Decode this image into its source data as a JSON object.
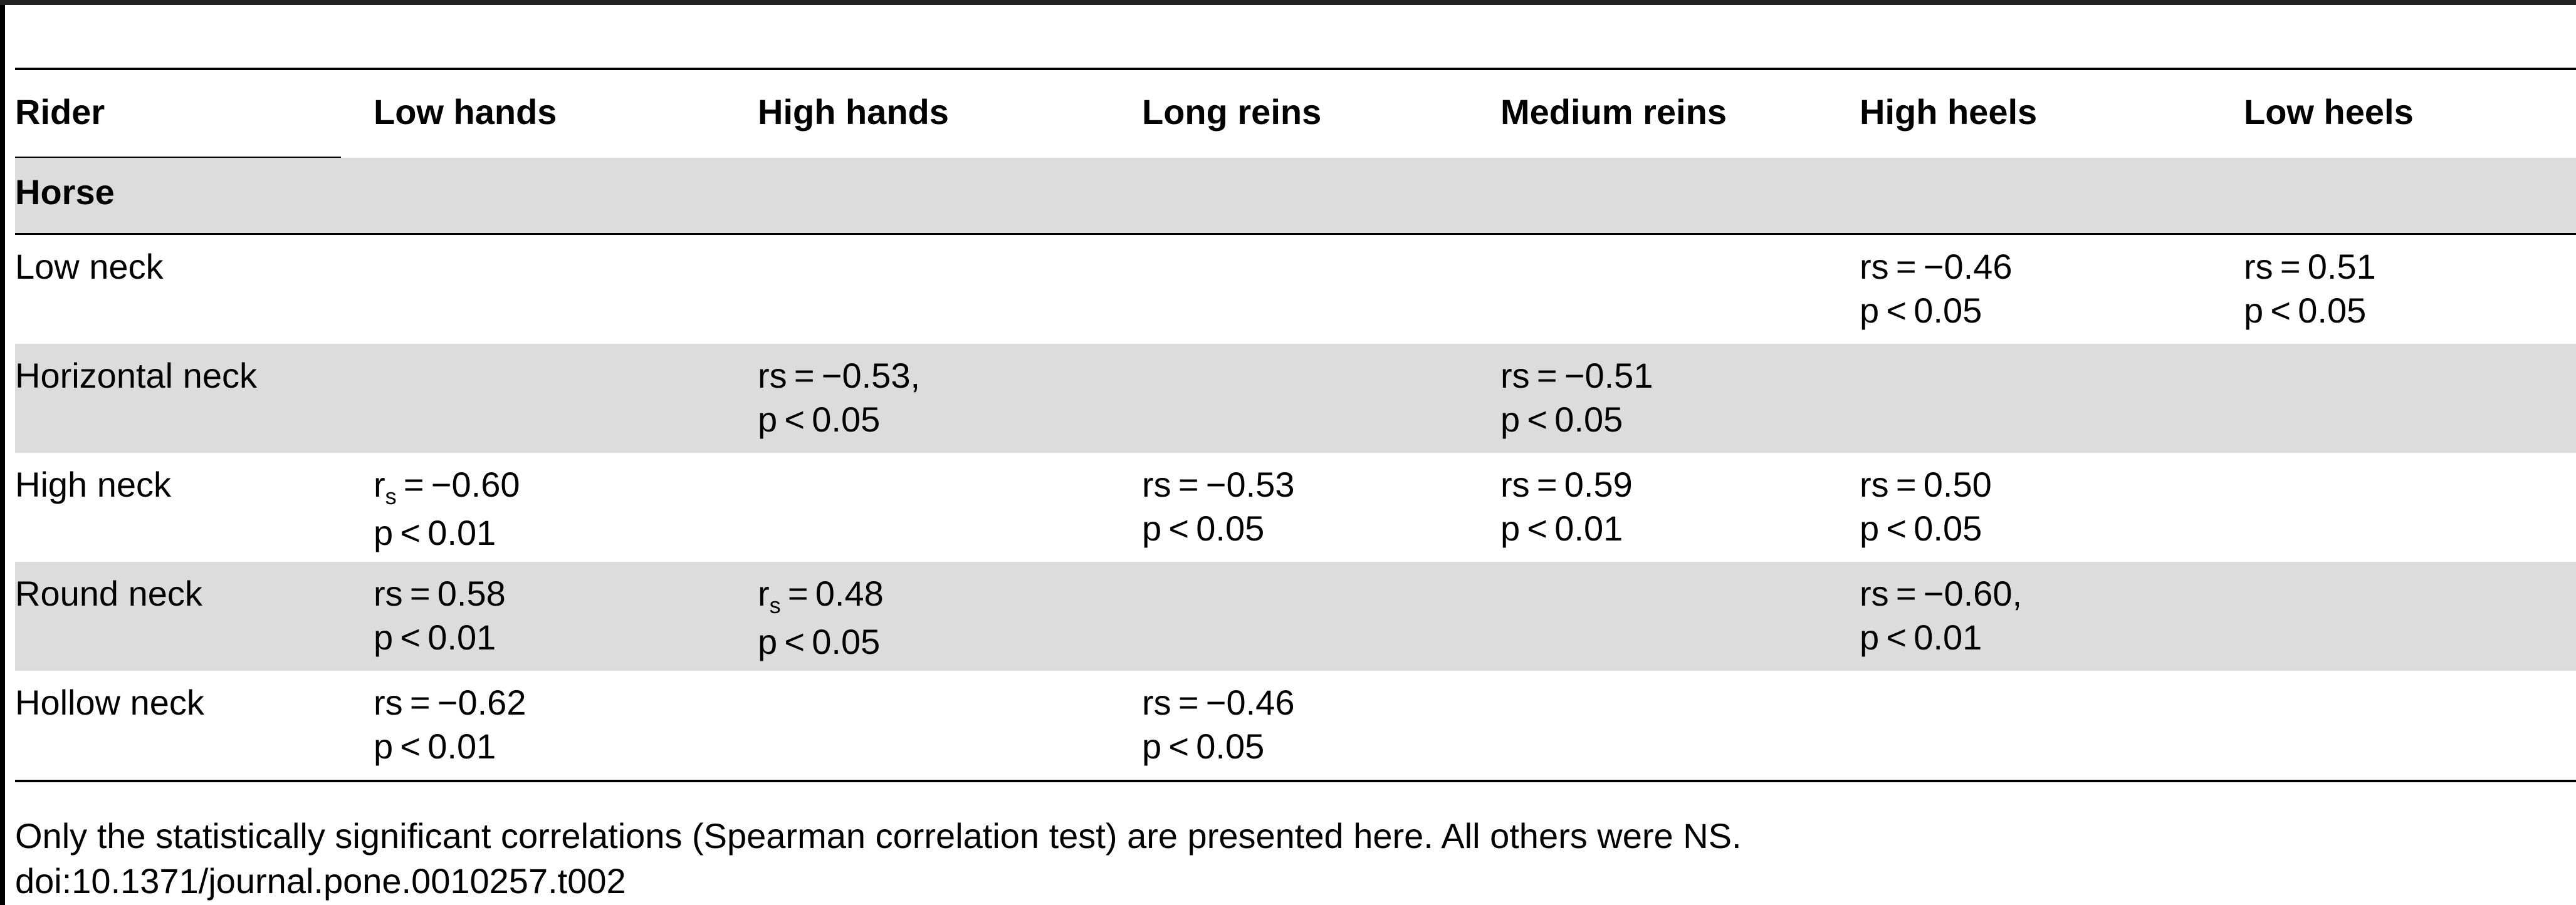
{
  "table": {
    "headers": [
      "Rider",
      "Low hands",
      "High hands",
      "Long reins",
      "Medium reins",
      "High heels",
      "Low heels"
    ],
    "group_label": "Horse",
    "rows": [
      {
        "label": "Low neck",
        "cells": [
          {
            "col": 5,
            "rs": "rs = −0.46",
            "p": "p < 0.05"
          },
          {
            "col": 6,
            "rs": "rs = 0.51",
            "p": "p < 0.05"
          }
        ]
      },
      {
        "label": "Horizontal neck",
        "cells": [
          {
            "col": 2,
            "rs": "rs = −0.53,",
            "p": "p < 0.05"
          },
          {
            "col": 4,
            "rs": "rs = −0.51",
            "p": "p < 0.05"
          }
        ]
      },
      {
        "label": "High neck",
        "cells": [
          {
            "col": 1,
            "r": "r",
            "sub": "s",
            "rest": " = −0.60",
            "p": "p < 0.01"
          },
          {
            "col": 3,
            "rs": "rs = −0.53",
            "p": "p < 0.05"
          },
          {
            "col": 4,
            "rs": "rs = 0.59",
            "p": "p < 0.01"
          },
          {
            "col": 5,
            "rs": "rs = 0.50",
            "p": "p < 0.05"
          }
        ]
      },
      {
        "label": "Round neck",
        "cells": [
          {
            "col": 1,
            "rs": "rs = 0.58",
            "p": "p < 0.01"
          },
          {
            "col": 2,
            "r": "r",
            "sub": "s",
            "rest": " = 0.48",
            "p": "p < 0.05"
          },
          {
            "col": 5,
            "rs": "rs = −0.60,",
            "p": "p < 0.01"
          }
        ]
      },
      {
        "label": "Hollow neck",
        "cells": [
          {
            "col": 1,
            "rs": "rs = −0.62",
            "p": "p < 0.01"
          },
          {
            "col": 3,
            "rs": "rs = −0.46",
            "p": "p < 0.05"
          }
        ]
      }
    ]
  },
  "footnote": {
    "note": "Only the statistically significant correlations (Spearman correlation test) are presented here. All others were NS.",
    "doi": "doi:10.1371/journal.pone.0010257.t002"
  }
}
